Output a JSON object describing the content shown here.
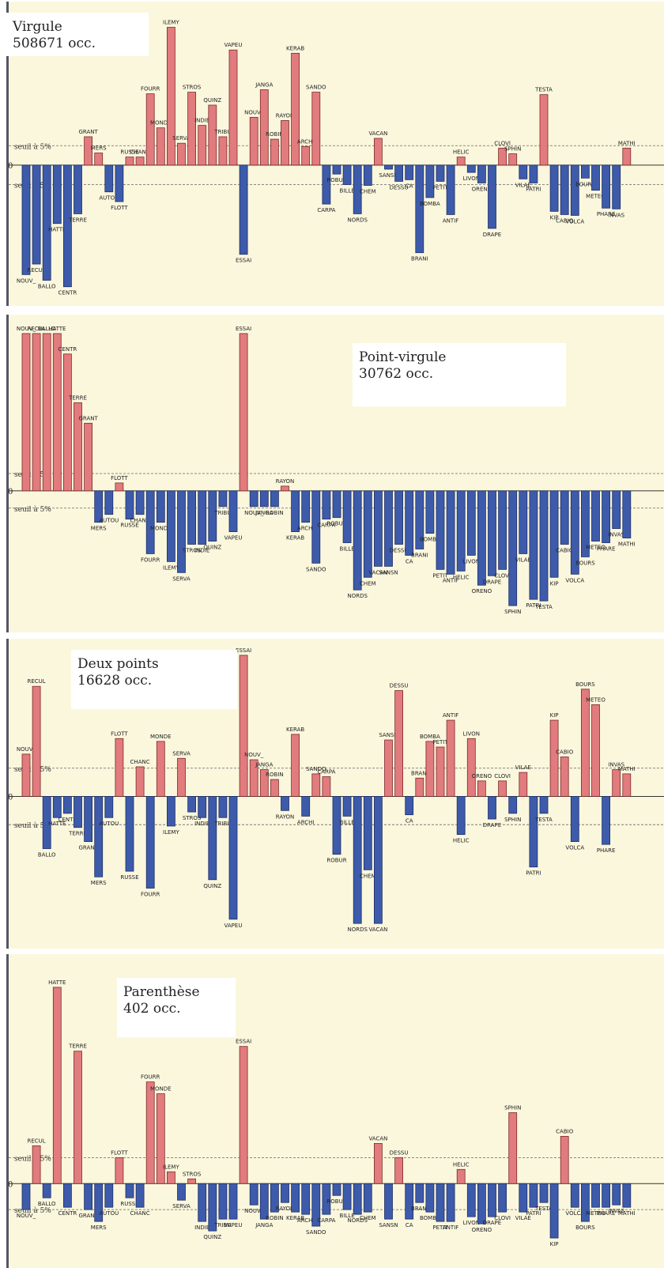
{
  "colors": {
    "background": "#fbf7dd",
    "positive": "#e27b7d",
    "negative": "#3d5baa",
    "border": "#555566",
    "threshold": "#666666"
  },
  "labels": {
    "zero": "0",
    "threshold_text": "seuil à 5%"
  },
  "chart_data": [
    {
      "type": "bar",
      "title": "Virgule",
      "subtitle": "508671 occ.",
      "threshold": 2.4,
      "ylim": [
        -16,
        19
      ],
      "bars": [
        {
          "label": "NOUV_",
          "value": -13.5
        },
        {
          "label": "RECUL",
          "value": -12.2
        },
        {
          "label": "BALLO",
          "value": -14.2
        },
        {
          "label": "HATTE",
          "value": -7.2
        },
        {
          "label": "CENTR",
          "value": -15.0
        },
        {
          "label": "TERRE",
          "value": -6.0
        },
        {
          "label": "GRANT",
          "value": 3.5
        },
        {
          "label": "MERS",
          "value": 1.5
        },
        {
          "label": "AUTOU",
          "value": -3.3
        },
        {
          "label": "FLOTT",
          "value": -4.5
        },
        {
          "label": "RUSSE",
          "value": 1.0
        },
        {
          "label": "CHANC",
          "value": 1.0
        },
        {
          "label": "FOURR",
          "value": 8.8
        },
        {
          "label": "MONDE",
          "value": 4.6
        },
        {
          "label": "ILEMY",
          "value": 17.0
        },
        {
          "label": "SERVA",
          "value": 2.7
        },
        {
          "label": "STROS",
          "value": 9.0
        },
        {
          "label": "INDIE",
          "value": 4.9
        },
        {
          "label": "QUINZ",
          "value": 7.4
        },
        {
          "label": "TRIBU",
          "value": 3.5
        },
        {
          "label": "VAPEU",
          "value": 14.2
        },
        {
          "label": "ESSAI",
          "value": -11.0
        },
        {
          "label": "NOUV_",
          "value": 5.9
        },
        {
          "label": "JANGA",
          "value": 9.3
        },
        {
          "label": "ROBIN",
          "value": 3.2
        },
        {
          "label": "RAYON",
          "value": 5.5
        },
        {
          "label": "KERAB",
          "value": 13.8
        },
        {
          "label": "ARCHI",
          "value": 2.3
        },
        {
          "label": "SANDO",
          "value": 9.0
        },
        {
          "label": "CARPA",
          "value": -4.8
        },
        {
          "label": "ROBUR",
          "value": -1.1
        },
        {
          "label": "BILLE",
          "value": -2.4
        },
        {
          "label": "NORDS",
          "value": -6.0
        },
        {
          "label": "CHEM",
          "value": -2.5
        },
        {
          "label": "VACAN",
          "value": 3.3
        },
        {
          "label": "SANSN",
          "value": -0.5
        },
        {
          "label": "DESSU",
          "value": -2.0
        },
        {
          "label": "CA",
          "value": -1.8
        },
        {
          "label": "BRANI",
          "value": -10.8
        },
        {
          "label": "BOMBA",
          "value": -4.0
        },
        {
          "label": "PETIT",
          "value": -2.0
        },
        {
          "label": "ANTIF",
          "value": -6.1
        },
        {
          "label": "HELIC",
          "value": 1.0
        },
        {
          "label": "LIVON",
          "value": -0.9
        },
        {
          "label": "ORENO",
          "value": -2.2
        },
        {
          "label": "DRAPE",
          "value": -7.8
        },
        {
          "label": "CLOVI",
          "value": 2.1
        },
        {
          "label": "SPHIN",
          "value": 1.4
        },
        {
          "label": "VILAE",
          "value": -1.7
        },
        {
          "label": "PATRI",
          "value": -2.2
        },
        {
          "label": "TESTA",
          "value": 8.7
        },
        {
          "label": "KIP",
          "value": -5.7
        },
        {
          "label": "CABIO",
          "value": -6.1
        },
        {
          "label": "VOLCA",
          "value": -6.2
        },
        {
          "label": "BOURS",
          "value": -1.6
        },
        {
          "label": "METEO",
          "value": -3.1
        },
        {
          "label": "PHARE",
          "value": -5.3
        },
        {
          "label": "INVAS",
          "value": -5.4
        },
        {
          "label": "MATHI",
          "value": 2.1
        }
      ]
    },
    {
      "type": "bar",
      "title": "Point-virgule",
      "subtitle": "30762 occ.",
      "threshold": 1.1,
      "ylim": [
        -8.3,
        10.6
      ],
      "bars": [
        {
          "label": "NOUV_",
          "value": 10.0
        },
        {
          "label": "RECUL",
          "value": 10.0
        },
        {
          "label": "BALLO",
          "value": 10.0
        },
        {
          "label": "HATTE",
          "value": 10.0
        },
        {
          "label": "CENTR",
          "value": 8.7
        },
        {
          "label": "TERRE",
          "value": 5.6
        },
        {
          "label": "GRANT",
          "value": 4.3
        },
        {
          "label": "MERS",
          "value": -2.0
        },
        {
          "label": "AUTOU",
          "value": -1.5
        },
        {
          "label": "FLOTT",
          "value": 0.5
        },
        {
          "label": "RUSSE",
          "value": -1.8
        },
        {
          "label": "CHANC",
          "value": -1.5
        },
        {
          "label": "FOURR",
          "value": -4.0
        },
        {
          "label": "MONDE",
          "value": -2.0
        },
        {
          "label": "ILEMY",
          "value": -4.5
        },
        {
          "label": "SERVA",
          "value": -5.2
        },
        {
          "label": "STROS",
          "value": -3.4
        },
        {
          "label": "INDIE",
          "value": -3.4
        },
        {
          "label": "QUINZ",
          "value": -3.2
        },
        {
          "label": "TRIBU",
          "value": -1.0
        },
        {
          "label": "VAPEU",
          "value": -2.6
        },
        {
          "label": "ESSAI",
          "value": 10.0
        },
        {
          "label": "NOUV_",
          "value": -1.0
        },
        {
          "label": "JANGA",
          "value": -1.0
        },
        {
          "label": "ROBIN",
          "value": -1.0
        },
        {
          "label": "RAYON",
          "value": 0.3
        },
        {
          "label": "KERAB",
          "value": -2.6
        },
        {
          "label": "ARCHI",
          "value": -2.0
        },
        {
          "label": "SANDO",
          "value": -4.6
        },
        {
          "label": "CARPA",
          "value": -1.8
        },
        {
          "label": "ROBUR",
          "value": -1.7
        },
        {
          "label": "BILLE",
          "value": -3.3
        },
        {
          "label": "NORDS",
          "value": -6.3
        },
        {
          "label": "CHEM",
          "value": -5.5
        },
        {
          "label": "VACAN",
          "value": -4.8
        },
        {
          "label": "SANSN",
          "value": -4.8
        },
        {
          "label": "DESSU",
          "value": -3.4
        },
        {
          "label": "CA",
          "value": -4.1
        },
        {
          "label": "BRANI",
          "value": -3.7
        },
        {
          "label": "BOMBA",
          "value": -2.7
        },
        {
          "label": "PETIT",
          "value": -5.0
        },
        {
          "label": "ANTIF",
          "value": -5.3
        },
        {
          "label": "HELIC",
          "value": -5.1
        },
        {
          "label": "LIVON",
          "value": -4.1
        },
        {
          "label": "ORENO",
          "value": -6.0
        },
        {
          "label": "DRAPE",
          "value": -5.4
        },
        {
          "label": "CLOVI",
          "value": -5.0
        },
        {
          "label": "SPHIN",
          "value": -7.3
        },
        {
          "label": "VILAE",
          "value": -4.0
        },
        {
          "label": "PATRI",
          "value": -6.9
        },
        {
          "label": "TESTA",
          "value": -7.0
        },
        {
          "label": "KIP",
          "value": -5.5
        },
        {
          "label": "CABIO",
          "value": -3.4
        },
        {
          "label": "VOLCA",
          "value": -5.3
        },
        {
          "label": "BOURS",
          "value": -4.2
        },
        {
          "label": "METEO",
          "value": -3.2
        },
        {
          "label": "PHARE",
          "value": -3.3
        },
        {
          "label": "INVAS",
          "value": -2.4
        },
        {
          "label": "MATHI",
          "value": -3.0
        }
      ]
    },
    {
      "type": "bar",
      "title": "Deux points",
      "subtitle": "16628 occ.",
      "threshold": 2.0,
      "ylim": [
        -10,
        10.5
      ],
      "bars": [
        {
          "label": "NOUV_",
          "value": 3.0
        },
        {
          "label": "RECUL",
          "value": 7.8
        },
        {
          "label": "BALLO",
          "value": -3.7
        },
        {
          "label": "HATTE",
          "value": -1.5
        },
        {
          "label": "CENTR",
          "value": -1.2
        },
        {
          "label": "TERRE",
          "value": -2.2
        },
        {
          "label": "GRANT",
          "value": -3.2
        },
        {
          "label": "MERS",
          "value": -5.7
        },
        {
          "label": "AUTOU",
          "value": -1.5
        },
        {
          "label": "FLOTT",
          "value": 4.1
        },
        {
          "label": "RUSSE",
          "value": -5.3
        },
        {
          "label": "CHANC",
          "value": 2.1
        },
        {
          "label": "FOURR",
          "value": -6.5
        },
        {
          "label": "MONDE",
          "value": 3.9
        },
        {
          "label": "ILEMY",
          "value": -2.1
        },
        {
          "label": "SERVA",
          "value": 2.7
        },
        {
          "label": "STROS",
          "value": -1.1
        },
        {
          "label": "INDIE",
          "value": -1.5
        },
        {
          "label": "QUINZ",
          "value": -5.9
        },
        {
          "label": "TRIBU",
          "value": -1.5
        },
        {
          "label": "VAPEU",
          "value": -8.7
        },
        {
          "label": "ESSAI",
          "value": 10.0
        },
        {
          "label": "NOUV_",
          "value": 2.6
        },
        {
          "label": "JANGA",
          "value": 1.9
        },
        {
          "label": "ROBIN",
          "value": 1.2
        },
        {
          "label": "RAYON",
          "value": -1.0
        },
        {
          "label": "KERAB",
          "value": 4.4
        },
        {
          "label": "ARCHI",
          "value": -1.4
        },
        {
          "label": "SANDO",
          "value": 1.6
        },
        {
          "label": "CARPA",
          "value": 1.4
        },
        {
          "label": "ROBUR",
          "value": -4.1
        },
        {
          "label": "BILLE",
          "value": -1.4
        },
        {
          "label": "NORDS",
          "value": -9.0
        },
        {
          "label": "CHEM",
          "value": -5.2
        },
        {
          "label": "VACAN",
          "value": -9.0
        },
        {
          "label": "SANSN",
          "value": 4.0
        },
        {
          "label": "DESSU",
          "value": 7.5
        },
        {
          "label": "CA",
          "value": -1.3
        },
        {
          "label": "BRANI",
          "value": 1.3
        },
        {
          "label": "BOMBA",
          "value": 3.9
        },
        {
          "label": "PETIT",
          "value": 3.5
        },
        {
          "label": "ANTIF",
          "value": 5.4
        },
        {
          "label": "HELIC",
          "value": -2.7
        },
        {
          "label": "LIVON",
          "value": 4.1
        },
        {
          "label": "ORENO",
          "value": 1.1
        },
        {
          "label": "DRAPE",
          "value": -1.6
        },
        {
          "label": "CLOVI",
          "value": 1.1
        },
        {
          "label": "SPHIN",
          "value": -1.2
        },
        {
          "label": "VILAE",
          "value": 1.7
        },
        {
          "label": "PATRI",
          "value": -5.0
        },
        {
          "label": "TESTA",
          "value": -1.2
        },
        {
          "label": "KIP",
          "value": 5.4
        },
        {
          "label": "CABIO",
          "value": 2.8
        },
        {
          "label": "VOLCA",
          "value": -3.2
        },
        {
          "label": "BOURS",
          "value": 7.6
        },
        {
          "label": "METEO",
          "value": 6.5
        },
        {
          "label": "PHARE",
          "value": -3.4
        },
        {
          "label": "INVAS",
          "value": 1.9
        },
        {
          "label": "MATHI",
          "value": 1.6
        }
      ]
    },
    {
      "type": "bar",
      "title": "Parenthèse",
      "subtitle": "402 occ.",
      "threshold": 1.1,
      "ylim": [
        -3.1,
        9.3
      ],
      "bars": [
        {
          "label": "NOUV_",
          "value": -1.1
        },
        {
          "label": "RECUL",
          "value": 1.6
        },
        {
          "label": "BALLO",
          "value": -0.6
        },
        {
          "label": "HATTE",
          "value": 8.3
        },
        {
          "label": "CENTR",
          "value": -1.0
        },
        {
          "label": "TERRE",
          "value": 5.6
        },
        {
          "label": "GRANT",
          "value": -1.1
        },
        {
          "label": "MERS",
          "value": -1.6
        },
        {
          "label": "AUTOU",
          "value": -1.0
        },
        {
          "label": "FLOTT",
          "value": 1.1
        },
        {
          "label": "RUSSE",
          "value": -0.6
        },
        {
          "label": "CHANC",
          "value": -1.0
        },
        {
          "label": "FOURR",
          "value": 4.3
        },
        {
          "label": "MONDE",
          "value": 3.8
        },
        {
          "label": "ILEMY",
          "value": 0.5
        },
        {
          "label": "SERVA",
          "value": -0.7
        },
        {
          "label": "STROS",
          "value": 0.2
        },
        {
          "label": "INDIE",
          "value": -1.6
        },
        {
          "label": "QUINZ",
          "value": -2.0
        },
        {
          "label": "TRIBU",
          "value": -1.5
        },
        {
          "label": "VAPEU",
          "value": -1.5
        },
        {
          "label": "ESSAI",
          "value": 5.8
        },
        {
          "label": "NOUV_",
          "value": -0.9
        },
        {
          "label": "JANGA",
          "value": -1.5
        },
        {
          "label": "ROBIN",
          "value": -1.2
        },
        {
          "label": "RAYON",
          "value": -0.8
        },
        {
          "label": "KERAB",
          "value": -1.2
        },
        {
          "label": "ARCHI",
          "value": -1.3
        },
        {
          "label": "SANDO",
          "value": -1.8
        },
        {
          "label": "CARPA",
          "value": -1.3
        },
        {
          "label": "ROBUR",
          "value": -0.5
        },
        {
          "label": "BILLE",
          "value": -1.1
        },
        {
          "label": "NORDS",
          "value": -1.3
        },
        {
          "label": "CHEM",
          "value": -1.2
        },
        {
          "label": "VACAN",
          "value": 1.7
        },
        {
          "label": "SANSN",
          "value": -1.5
        },
        {
          "label": "DESSU",
          "value": 1.1
        },
        {
          "label": "CA",
          "value": -1.5
        },
        {
          "label": "BRANI",
          "value": -0.8
        },
        {
          "label": "BOMBA",
          "value": -1.2
        },
        {
          "label": "PETIT",
          "value": -1.6
        },
        {
          "label": "ANTIF",
          "value": -1.6
        },
        {
          "label": "HELIC",
          "value": 0.6
        },
        {
          "label": "LIVON",
          "value": -1.4
        },
        {
          "label": "ORENO",
          "value": -1.7
        },
        {
          "label": "DRAPE",
          "value": -1.4
        },
        {
          "label": "CLOVI",
          "value": -1.2
        },
        {
          "label": "SPHIN",
          "value": 3.0
        },
        {
          "label": "VILAE",
          "value": -1.2
        },
        {
          "label": "PATRI",
          "value": -1.0
        },
        {
          "label": "TESTA",
          "value": -0.8
        },
        {
          "label": "KIP",
          "value": -2.3
        },
        {
          "label": "CABIO",
          "value": 2.0
        },
        {
          "label": "VOLCA",
          "value": -1.0
        },
        {
          "label": "BOURS",
          "value": -1.6
        },
        {
          "label": "METEO",
          "value": -1.0
        },
        {
          "label": "PHARE",
          "value": -1.0
        },
        {
          "label": "INVAS",
          "value": -0.9
        },
        {
          "label": "MATHI",
          "value": -1.0
        }
      ]
    }
  ]
}
